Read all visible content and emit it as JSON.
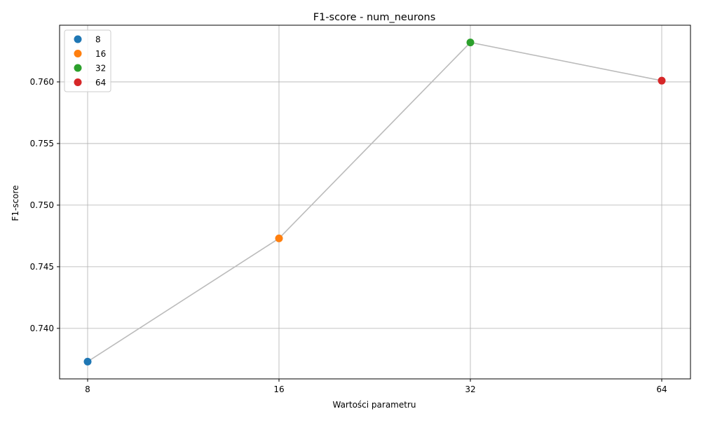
{
  "chart_data": {
    "type": "line",
    "title": "F1-score - num_neurons",
    "xlabel": "Wartości parametru",
    "ylabel": "F1-score",
    "categories": [
      "8",
      "16",
      "32",
      "64"
    ],
    "x_scale": "categorical (equally spaced)",
    "values": [
      0.7373,
      0.7473,
      0.7632,
      0.7601
    ],
    "ylim": [
      0.7359,
      0.7646
    ],
    "yticks": [
      "0.740",
      "0.745",
      "0.750",
      "0.755",
      "0.760"
    ],
    "grid": true,
    "connector_color": "#bbbbbb",
    "legend": {
      "placement": "top-left",
      "entries": [
        {
          "label": "8",
          "color": "#1f77b4"
        },
        {
          "label": "16",
          "color": "#ff7f0e"
        },
        {
          "label": "32",
          "color": "#2ca02c"
        },
        {
          "label": "64",
          "color": "#d62728"
        }
      ]
    }
  }
}
